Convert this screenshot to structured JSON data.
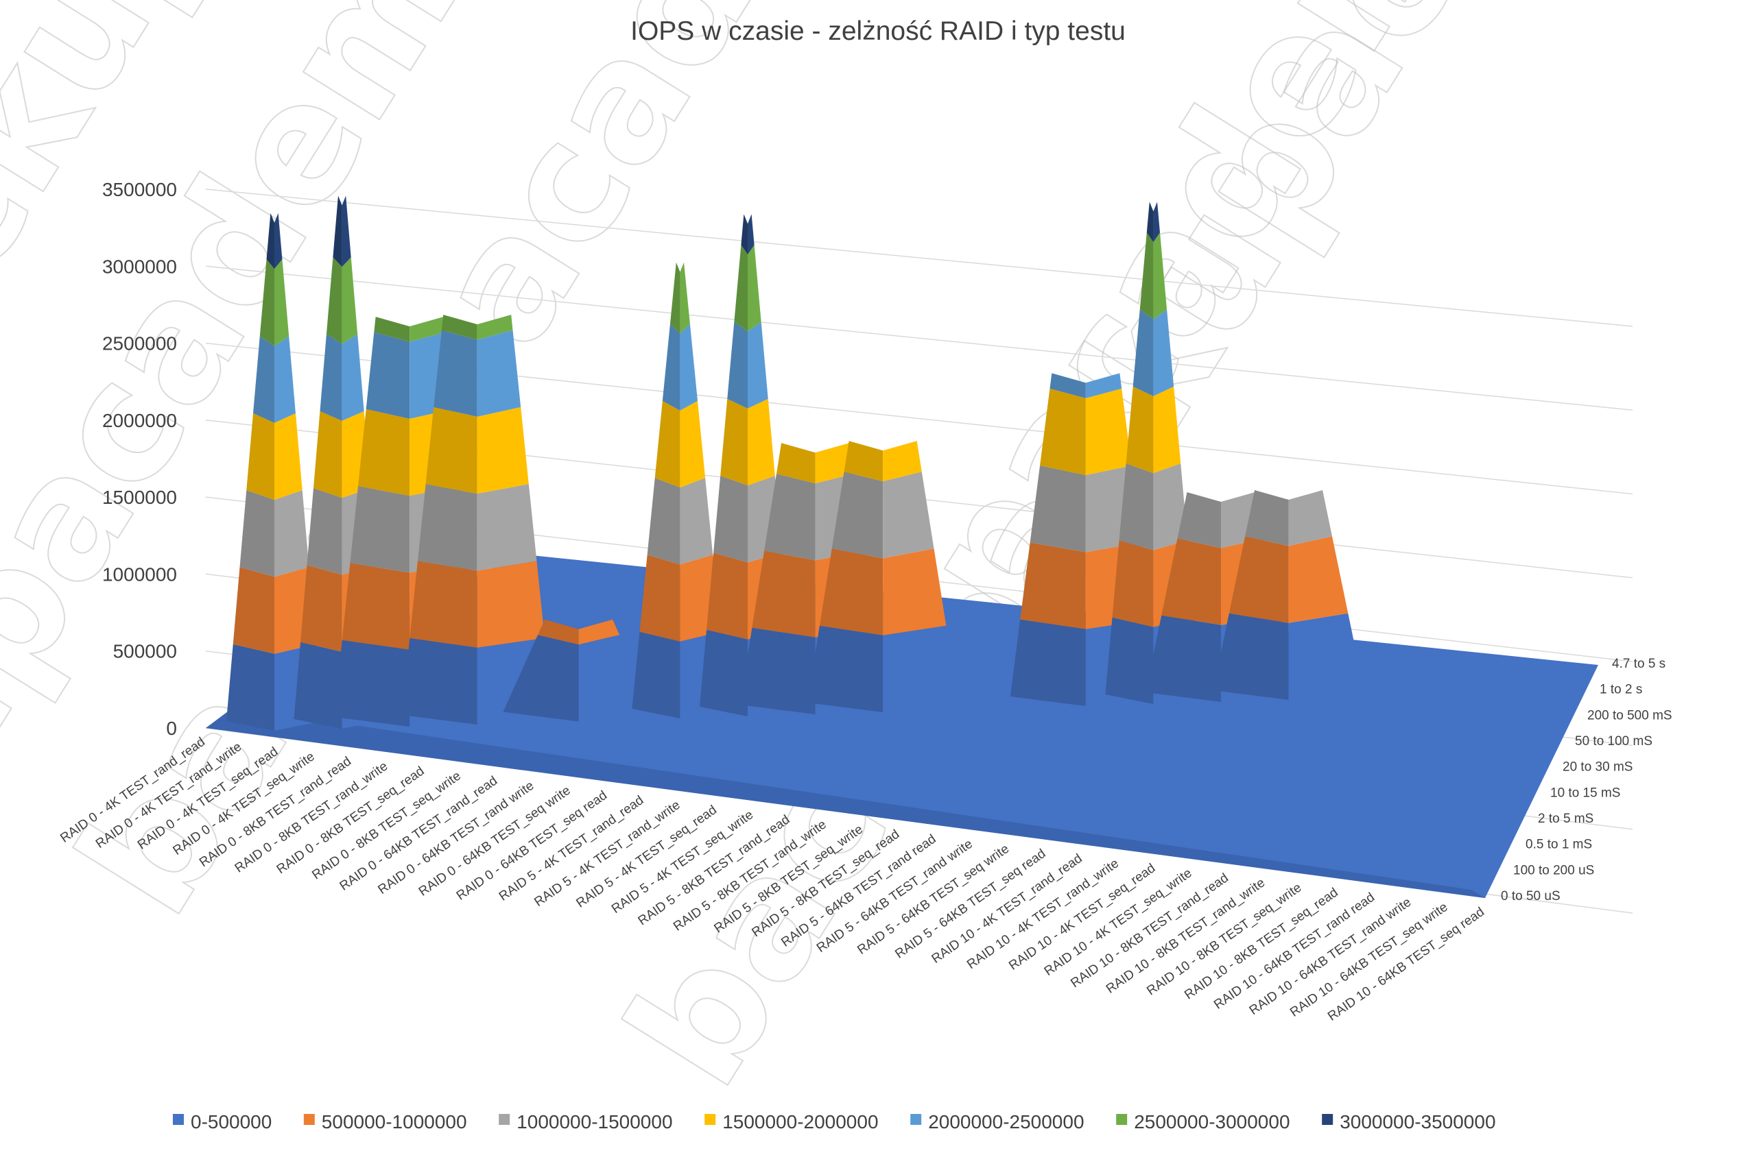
{
  "chart_data": {
    "type": "surface",
    "title": "IOPS w czasie - zelżność RAID i typ testu",
    "yticks": [
      "3500000",
      "3000000",
      "2500000",
      "2000000",
      "1500000",
      "1000000",
      "500000",
      "0"
    ],
    "ylim": [
      0,
      3500000
    ],
    "categories": [
      "RAID 0 - 4K TEST_rand_read",
      "RAID 0 - 4K TEST_rand_write",
      "RAID 0 - 4K TEST_seq_read",
      "RAID 0 - 4K TEST_seq_write",
      "RAID 0 - 8KB TEST_rand_read",
      "RAID 0 - 8KB TEST_rand_write",
      "RAID 0 - 8KB TEST_seq_read",
      "RAID 0 - 8KB TEST_seq_write",
      "RAID 0 - 64KB TEST_rand_read",
      "RAID 0 - 64KB TEST_rand write",
      "RAID 0 - 64KB TEST_seq write",
      "RAID 0 - 64KB TEST_seq read",
      "RAID 5 - 4K TEST_rand_read",
      "RAID 5 - 4K TEST_rand_write",
      "RAID 5 - 4K TEST_seq_read",
      "RAID 5 - 4K TEST_seq_write",
      "RAID 5 - 8KB TEST_rand_read",
      "RAID 5 - 8KB TEST_rand_write",
      "RAID 5 - 8KB TEST_seq_write",
      "RAID 5 - 8KB TEST_seq_read",
      "RAID 5 - 64KB TEST_rand read",
      "RAID 5 - 64KB TEST_rand write",
      "RAID 5 - 64KB TEST_seq write",
      "RAID 5 - 64KB TEST_seq read",
      "RAID 10 - 4K TEST_rand_read",
      "RAID 10 - 4K TEST_rand_write",
      "RAID 10 - 4K TEST_seq_read",
      "RAID 10 - 4K TEST_seq_write",
      "RAID 10 - 8KB TEST_rand_read",
      "RAID 10 - 8KB TEST_rand_write",
      "RAID 10 - 8KB TEST_seq_write",
      "RAID 10 - 8KB TEST_seq_read",
      "RAID 10 - 64KB TEST_rand read",
      "RAID 10 - 64KB TEST_rand write",
      "RAID 10 - 64KB TEST_seq write",
      "RAID 10 - 64KB TEST_seq read"
    ],
    "depth_categories": [
      "0 to 50 uS",
      "100 to 200 uS",
      "0.5 to 1 mS",
      "2 to 5 mS",
      "10 to 15 mS",
      "20 to 30 mS",
      "50 to 100 mS",
      "200 to 500 mS",
      "1 to 2 s",
      "4.7 to 5 s"
    ],
    "legend": {
      "placement": "bottom",
      "items": [
        {
          "label": "0-500000",
          "color": "#4472c4"
        },
        {
          "label": "500000-1000000",
          "color": "#ed7d31"
        },
        {
          "label": "1000000-1500000",
          "color": "#a5a5a5"
        },
        {
          "label": "1500000-2000000",
          "color": "#ffc000"
        },
        {
          "label": "2000000-2500000",
          "color": "#5b9bd5"
        },
        {
          "label": "2500000-3000000",
          "color": "#70ad47"
        },
        {
          "label": "3000000-3500000",
          "color": "#264478"
        }
      ]
    },
    "peaks": [
      {
        "category": "RAID 0 - 4K TEST_rand_read",
        "value": 3300000
      },
      {
        "category": "RAID 0 - 4K TEST_seq_read",
        "value": 3400000
      },
      {
        "category": "RAID 0 - 8KB TEST_rand_read",
        "value": 2600000
      },
      {
        "category": "RAID 0 - 8KB TEST_seq_read",
        "value": 2600000
      },
      {
        "category": "RAID 0 - 64KB TEST_rand write",
        "value": 600000
      },
      {
        "category": "RAID 5 - 4K TEST_rand_read",
        "value": 2900000
      },
      {
        "category": "RAID 5 - 4K TEST_seq_read",
        "value": 3200000
      },
      {
        "category": "RAID 5 - 8KB TEST_rand_read",
        "value": 1700000
      },
      {
        "category": "RAID 5 - 8KB TEST_seq_write",
        "value": 1700000
      },
      {
        "category": "RAID 10 - 4K TEST_rand_read",
        "value": 2100000
      },
      {
        "category": "RAID 10 - 4K TEST_seq_read",
        "value": 3200000
      },
      {
        "category": "RAID 10 - 8KB TEST_rand_read",
        "value": 1300000
      },
      {
        "category": "RAID 10 - 8KB TEST_seq_write",
        "value": 1300000
      }
    ]
  },
  "watermark": "backupacademy.pl"
}
